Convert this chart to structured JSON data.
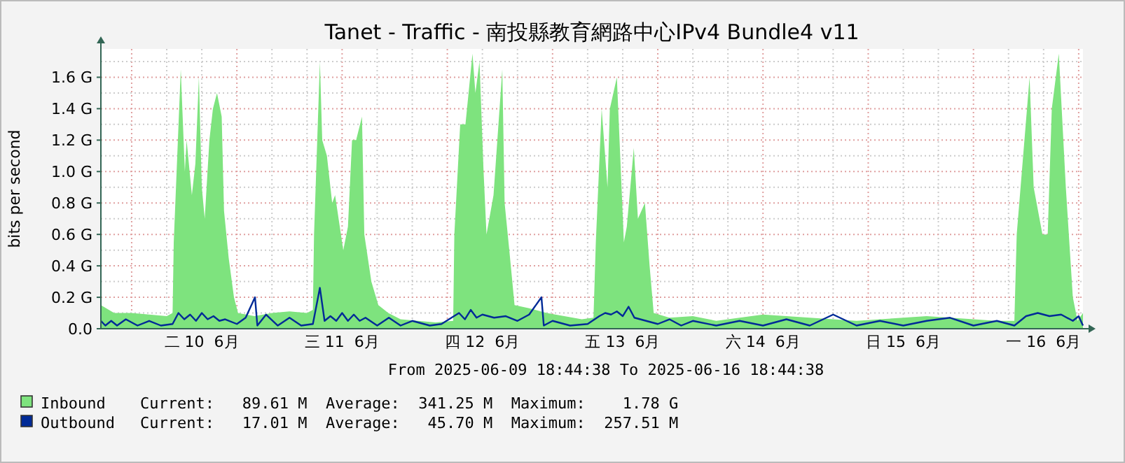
{
  "chart_data": {
    "type": "area",
    "title": "Tanet - Traffic -  南投縣教育網路中心IPv4 Bundle4 v11",
    "ylabel": "bits per second",
    "annotations": [
      "From 2025-06-09 18:44:38 To 2025-06-16 18:44:38",
      "Current:   89.61 M  Average:  341.25 M  Maximum:    1.78 G",
      "Current:   17.01 M  Average:   45.70 M  Maximum:  257.51 M"
    ],
    "xlim": [
      "2025-06-09T18:44",
      "2025-06-16T18:44"
    ],
    "ylim": [
      0,
      1.78
    ],
    "xticks": [
      {
        "value": "2025-06-10T12:00",
        "label": "二 10  6月"
      },
      {
        "value": "2025-06-11T12:00",
        "label": "三 11  6月"
      },
      {
        "value": "2025-06-12T12:00",
        "label": "四 12  6月"
      },
      {
        "value": "2025-06-13T12:00",
        "label": "五 13  6月"
      },
      {
        "value": "2025-06-14T12:00",
        "label": "六 14  6月"
      },
      {
        "value": "2025-06-15T12:00",
        "label": "日 15  6月"
      },
      {
        "value": "2025-06-16T12:00",
        "label": "一 16  6月"
      }
    ],
    "yticks": [
      {
        "value": 0,
        "label": "0.0"
      },
      {
        "value": 0.2,
        "label": "0.2 G"
      },
      {
        "value": 0.4,
        "label": "0.4 G"
      },
      {
        "value": 0.6,
        "label": "0.6 G"
      },
      {
        "value": 0.8,
        "label": "0.8 G"
      },
      {
        "value": 1.0,
        "label": "1.0 G"
      },
      {
        "value": 1.2,
        "label": "1.2 G"
      },
      {
        "value": 1.4,
        "label": "1.4 G"
      },
      {
        "value": 1.6,
        "label": "1.6 G"
      }
    ],
    "grid": true,
    "legend": "bottom",
    "series": [
      {
        "name": "Inbound",
        "type": "area",
        "color": "#7ee37e",
        "x": [
          "2025-06-09T18:44",
          "2025-06-09T21:00",
          "2025-06-10T00:00",
          "2025-06-10T03:00",
          "2025-06-10T06:00",
          "2025-06-10T07:00",
          "2025-06-10T07:12",
          "2025-06-10T08:24",
          "2025-06-10T09:06",
          "2025-06-10T09:24",
          "2025-06-10T10:18",
          "2025-06-10T10:54",
          "2025-06-10T11:30",
          "2025-06-10T12:00",
          "2025-06-10T12:30",
          "2025-06-10T13:18",
          "2025-06-10T13:54",
          "2025-06-10T14:36",
          "2025-06-10T15:24",
          "2025-06-10T15:48",
          "2025-06-10T16:36",
          "2025-06-10T17:30",
          "2025-06-10T18:12",
          "2025-06-10T21:00",
          "2025-06-11T00:00",
          "2025-06-11T03:00",
          "2025-06-11T06:00",
          "2025-06-11T07:00",
          "2025-06-11T07:12",
          "2025-06-11T08:12",
          "2025-06-11T08:36",
          "2025-06-11T09:24",
          "2025-06-11T10:18",
          "2025-06-11T10:48",
          "2025-06-11T12:12",
          "2025-06-11T13:00",
          "2025-06-11T13:42",
          "2025-06-11T14:24",
          "2025-06-11T15:24",
          "2025-06-11T15:48",
          "2025-06-11T17:00",
          "2025-06-11T18:12",
          "2025-06-11T19:54",
          "2025-06-11T22:00",
          "2025-06-12T01:00",
          "2025-06-12T04:00",
          "2025-06-12T07:00",
          "2025-06-12T07:12",
          "2025-06-12T08:12",
          "2025-06-12T09:06",
          "2025-06-12T10:18",
          "2025-06-12T10:48",
          "2025-06-12T11:30",
          "2025-06-12T12:12",
          "2025-06-12T12:42",
          "2025-06-12T13:54",
          "2025-06-12T15:24",
          "2025-06-12T15:48",
          "2025-06-12T16:36",
          "2025-06-12T17:30",
          "2025-06-12T20:00",
          "2025-06-12T23:00",
          "2025-06-13T02:00",
          "2025-06-13T05:00",
          "2025-06-13T07:00",
          "2025-06-13T07:24",
          "2025-06-13T08:24",
          "2025-06-13T09:24",
          "2025-06-13T09:48",
          "2025-06-13T11:00",
          "2025-06-13T11:48",
          "2025-06-13T12:12",
          "2025-06-13T12:42",
          "2025-06-13T13:54",
          "2025-06-13T14:36",
          "2025-06-13T15:48",
          "2025-06-13T16:36",
          "2025-06-13T17:18",
          "2025-06-13T20:00",
          "2025-06-14T00:00",
          "2025-06-14T04:00",
          "2025-06-14T08:00",
          "2025-06-14T12:00",
          "2025-06-14T16:00",
          "2025-06-14T20:00",
          "2025-06-15T00:00",
          "2025-06-15T04:00",
          "2025-06-15T08:00",
          "2025-06-15T12:00",
          "2025-06-15T16:00",
          "2025-06-15T20:00",
          "2025-06-16T00:00",
          "2025-06-16T04:00",
          "2025-06-16T07:00",
          "2025-06-16T07:24",
          "2025-06-16T09:36",
          "2025-06-16T10:18",
          "2025-06-16T11:48",
          "2025-06-16T12:42",
          "2025-06-16T13:24",
          "2025-06-16T14:36",
          "2025-06-16T15:48",
          "2025-06-16T17:00",
          "2025-06-16T17:48",
          "2025-06-16T18:44"
        ],
        "values": [
          0.15,
          0.1,
          0.1,
          0.09,
          0.08,
          0.1,
          0.55,
          1.65,
          1.0,
          1.2,
          0.85,
          1.05,
          1.6,
          0.9,
          0.7,
          1.2,
          1.4,
          1.5,
          1.35,
          0.75,
          0.45,
          0.2,
          0.1,
          0.08,
          0.1,
          0.11,
          0.1,
          0.12,
          0.6,
          1.7,
          1.2,
          1.1,
          0.8,
          0.85,
          0.5,
          0.65,
          1.2,
          1.2,
          1.35,
          0.6,
          0.3,
          0.15,
          0.1,
          0.06,
          0.05,
          0.04,
          0.05,
          0.6,
          1.3,
          1.3,
          1.75,
          1.5,
          1.7,
          1.0,
          0.6,
          0.85,
          1.65,
          0.8,
          0.5,
          0.15,
          0.13,
          0.1,
          0.08,
          0.06,
          0.07,
          0.55,
          1.4,
          0.9,
          1.4,
          1.6,
          0.9,
          0.55,
          0.65,
          1.15,
          0.7,
          0.8,
          0.4,
          0.1,
          0.07,
          0.08,
          0.05,
          0.07,
          0.09,
          0.08,
          0.07,
          0.06,
          0.05,
          0.06,
          0.07,
          0.08,
          0.07,
          0.06,
          0.05,
          0.05,
          0.6,
          1.6,
          0.9,
          0.6,
          0.6,
          1.4,
          1.75,
          0.9,
          0.2,
          0.05,
          0.1
        ]
      },
      {
        "name": "Outbound",
        "type": "line",
        "color": "#002a97",
        "x": [
          "2025-06-09T18:44",
          "2025-06-09T19:30",
          "2025-06-09T20:30",
          "2025-06-09T21:30",
          "2025-06-09T23:00",
          "2025-06-10T01:00",
          "2025-06-10T03:00",
          "2025-06-10T05:00",
          "2025-06-10T07:00",
          "2025-06-10T08:00",
          "2025-06-10T09:00",
          "2025-06-10T10:00",
          "2025-06-10T11:00",
          "2025-06-10T12:00",
          "2025-06-10T13:00",
          "2025-06-10T14:00",
          "2025-06-10T15:00",
          "2025-06-10T16:00",
          "2025-06-10T18:00",
          "2025-06-10T19:30",
          "2025-06-10T21:06",
          "2025-06-10T21:30",
          "2025-06-10T23:00",
          "2025-06-11T01:00",
          "2025-06-11T03:00",
          "2025-06-11T05:00",
          "2025-06-11T07:00",
          "2025-06-11T08:12",
          "2025-06-11T09:00",
          "2025-06-11T10:00",
          "2025-06-11T11:00",
          "2025-06-11T12:00",
          "2025-06-11T13:00",
          "2025-06-11T14:00",
          "2025-06-11T15:00",
          "2025-06-11T16:00",
          "2025-06-11T18:00",
          "2025-06-11T20:00",
          "2025-06-11T22:00",
          "2025-06-12T00:00",
          "2025-06-12T03:00",
          "2025-06-12T05:00",
          "2025-06-12T08:00",
          "2025-06-12T09:00",
          "2025-06-12T10:00",
          "2025-06-12T11:00",
          "2025-06-12T12:00",
          "2025-06-12T14:00",
          "2025-06-12T16:00",
          "2025-06-12T18:00",
          "2025-06-12T20:00",
          "2025-06-12T22:06",
          "2025-06-12T22:30",
          "2025-06-13T00:00",
          "2025-06-13T03:00",
          "2025-06-13T06:00",
          "2025-06-13T08:00",
          "2025-06-13T09:00",
          "2025-06-13T10:00",
          "2025-06-13T11:00",
          "2025-06-13T12:00",
          "2025-06-13T13:00",
          "2025-06-13T14:00",
          "2025-06-13T16:00",
          "2025-06-13T18:00",
          "2025-06-13T20:00",
          "2025-06-13T22:00",
          "2025-06-14T00:00",
          "2025-06-14T04:00",
          "2025-06-14T08:00",
          "2025-06-14T12:00",
          "2025-06-14T16:00",
          "2025-06-14T20:00",
          "2025-06-15T00:00",
          "2025-06-15T04:00",
          "2025-06-15T08:00",
          "2025-06-15T12:00",
          "2025-06-15T16:00",
          "2025-06-15T20:00",
          "2025-06-16T00:00",
          "2025-06-16T04:00",
          "2025-06-16T07:00",
          "2025-06-16T09:00",
          "2025-06-16T11:00",
          "2025-06-16T13:00",
          "2025-06-16T15:00",
          "2025-06-16T17:00",
          "2025-06-16T18:00",
          "2025-06-16T18:44"
        ],
        "values": [
          0.05,
          0.02,
          0.05,
          0.02,
          0.06,
          0.02,
          0.05,
          0.02,
          0.03,
          0.1,
          0.06,
          0.09,
          0.05,
          0.1,
          0.06,
          0.08,
          0.05,
          0.06,
          0.03,
          0.07,
          0.2,
          0.02,
          0.09,
          0.02,
          0.07,
          0.02,
          0.03,
          0.26,
          0.05,
          0.08,
          0.05,
          0.1,
          0.05,
          0.09,
          0.05,
          0.07,
          0.02,
          0.07,
          0.02,
          0.05,
          0.02,
          0.03,
          0.1,
          0.06,
          0.12,
          0.07,
          0.09,
          0.07,
          0.08,
          0.05,
          0.09,
          0.2,
          0.02,
          0.05,
          0.02,
          0.03,
          0.08,
          0.1,
          0.09,
          0.11,
          0.08,
          0.14,
          0.07,
          0.05,
          0.03,
          0.06,
          0.02,
          0.05,
          0.02,
          0.05,
          0.02,
          0.06,
          0.02,
          0.09,
          0.02,
          0.05,
          0.02,
          0.05,
          0.07,
          0.02,
          0.05,
          0.02,
          0.08,
          0.1,
          0.08,
          0.09,
          0.05,
          0.08,
          0.02
        ]
      }
    ]
  }
}
